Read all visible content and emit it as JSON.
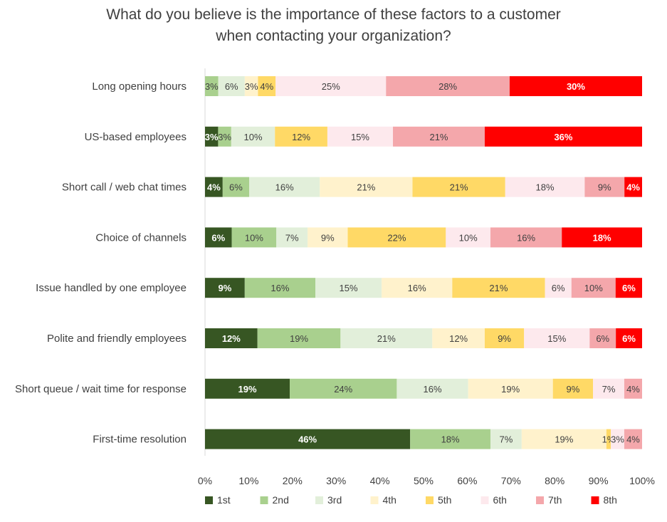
{
  "chart_data": {
    "type": "bar",
    "orientation": "horizontal",
    "stacked": true,
    "percent_stacked": true,
    "title_lines": [
      "What do you believe is the importance of these factors to a customer",
      "when contacting your organization?"
    ],
    "categories": [
      "Long opening hours",
      "US-based employees",
      "Short call / web chat times",
      "Choice of channels",
      "Issue handled by one employee",
      "Polite and friendly employees",
      "Short queue / wait time for response",
      "First-time resolution"
    ],
    "series": [
      {
        "name": "1st",
        "color": "#375623",
        "values": [
          0,
          3,
          4,
          6,
          9,
          12,
          19,
          46
        ],
        "labels": [
          "",
          "3%",
          "4%",
          "6%",
          "9%",
          "12%",
          "19%",
          "46%"
        ]
      },
      {
        "name": "2nd",
        "color": "#a9d08e",
        "values": [
          3,
          3,
          6,
          10,
          16,
          19,
          24,
          18
        ],
        "labels": [
          "3%",
          "3%",
          "6%",
          "10%",
          "16%",
          "19%",
          "24%",
          "18%"
        ]
      },
      {
        "name": "3rd",
        "color": "#e2efda",
        "values": [
          6,
          10,
          16,
          7,
          15,
          21,
          16,
          7
        ],
        "labels": [
          "6%",
          "10%",
          "16%",
          "7%",
          "15%",
          "21%",
          "16%",
          "7%"
        ]
      },
      {
        "name": "4th",
        "color": "#fff2cc",
        "values": [
          3,
          0,
          21,
          9,
          16,
          12,
          19,
          19
        ],
        "labels": [
          "3%",
          "",
          "21%",
          "9%",
          "16%",
          "12%",
          "19%",
          "19%"
        ]
      },
      {
        "name": "5th",
        "color": "#ffd966",
        "values": [
          4,
          12,
          21,
          22,
          21,
          9,
          9,
          1
        ],
        "labels": [
          "4%",
          "12%",
          "21%",
          "22%",
          "21%",
          "9%",
          "9%",
          "1%"
        ]
      },
      {
        "name": "6th",
        "color": "#fde9ed",
        "values": [
          25,
          15,
          18,
          10,
          6,
          15,
          7,
          3
        ],
        "labels": [
          "25%",
          "15%",
          "18%",
          "10%",
          "6%",
          "15%",
          "7%",
          "3%"
        ]
      },
      {
        "name": "7th",
        "color": "#f4a7ab",
        "values": [
          28,
          21,
          9,
          16,
          10,
          6,
          4,
          4
        ],
        "labels": [
          "28%",
          "21%",
          "9%",
          "16%",
          "10%",
          "6%",
          "4%",
          "4%"
        ]
      },
      {
        "name": "8th",
        "color": "#ff0000",
        "values": [
          30,
          36,
          4,
          18,
          6,
          6,
          0,
          0
        ],
        "labels": [
          "30%",
          "36%",
          "4%",
          "18%",
          "6%",
          "6%",
          "",
          ""
        ]
      }
    ],
    "x_ticks": [
      "0%",
      "10%",
      "20%",
      "30%",
      "40%",
      "50%",
      "60%",
      "70%",
      "80%",
      "90%",
      "100%"
    ],
    "xlim": [
      0,
      100
    ],
    "grid": false,
    "legend_position": "bottom"
  }
}
